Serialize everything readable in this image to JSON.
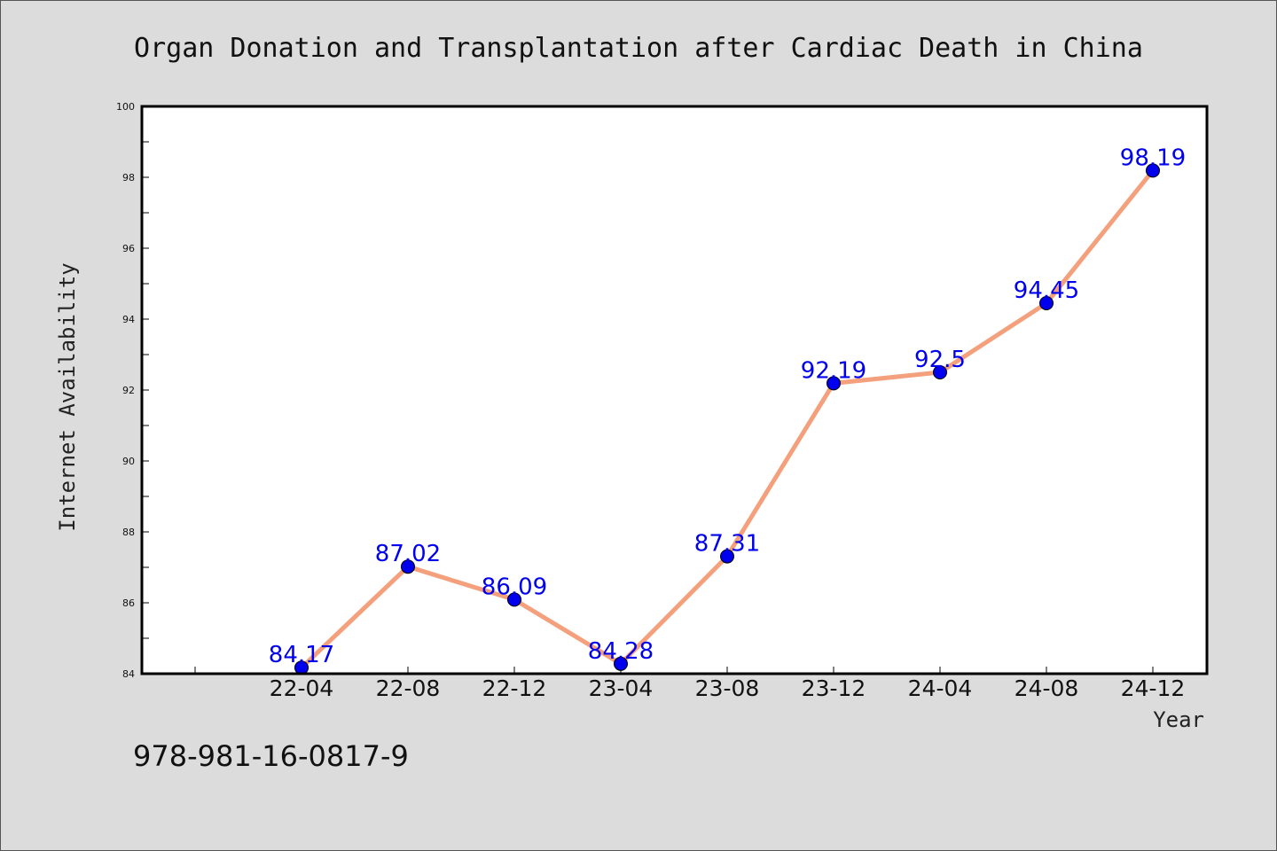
{
  "chart_data": {
    "type": "line",
    "title": "Organ Donation and Transplantation after Cardiac Death in China",
    "xlabel": "Year",
    "ylabel": "Internet Availability",
    "categories": [
      "22-04",
      "22-08",
      "22-12",
      "23-04",
      "23-08",
      "23-12",
      "24-04",
      "24-08",
      "24-12"
    ],
    "series": [
      {
        "values": [
          84.17,
          87.02,
          86.09,
          84.28,
          87.31,
          92.19,
          92.5,
          94.45,
          98.19
        ]
      }
    ],
    "data_labels": [
      "84.17",
      "87.02",
      "86.09",
      "84.28",
      "87.31",
      "92.19",
      "92.5",
      "94.45",
      "98.19"
    ],
    "ylim": [
      84,
      100
    ],
    "y_ticks": [
      "84",
      "86",
      "88",
      "90",
      "92",
      "94",
      "96",
      "98",
      "100"
    ],
    "grid": false,
    "legend": "none",
    "colors": {
      "line": "#f4a07c",
      "marker": "#0000ee",
      "label": "#0000ee",
      "background": "#dcdcdc",
      "plot_background": "#ffffff"
    }
  },
  "footer": {
    "isbn": "978-981-16-0817-9"
  }
}
